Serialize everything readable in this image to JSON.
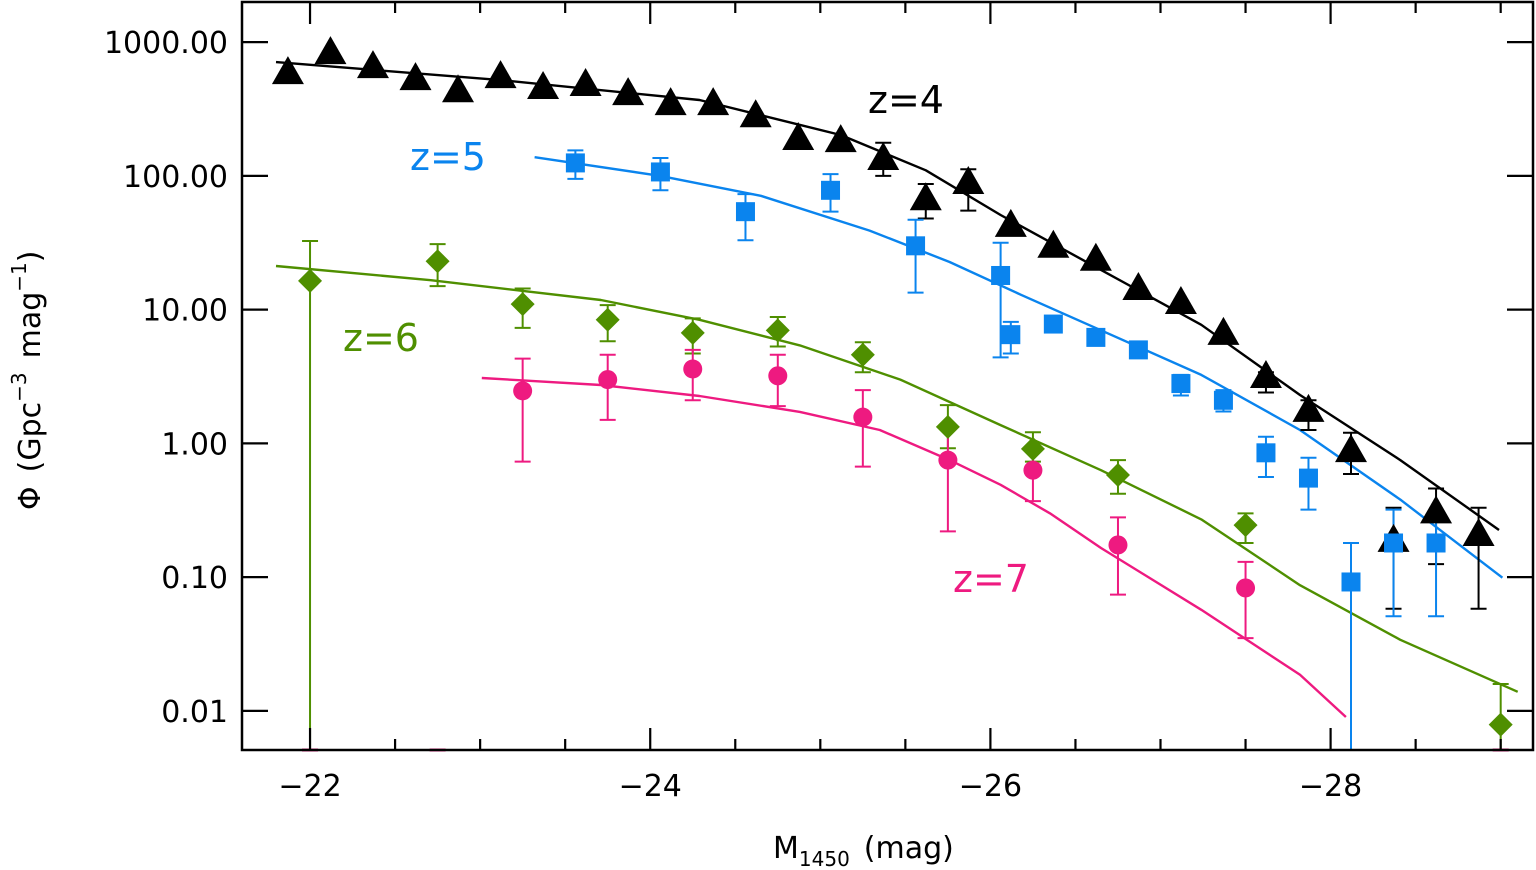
{
  "chart_data": {
    "type": "scatter",
    "title": "",
    "xlabel": {
      "main": "M",
      "sub": "1450",
      "unit": "(mag)"
    },
    "ylabel": {
      "symbol": "Φ",
      "open": "(Gpc",
      "exp1": "−3",
      "mid": "mag",
      "exp2": "−1",
      "close": ")"
    },
    "xlim": [
      -21.6,
      -29.19
    ],
    "ylim": [
      0.0051,
      1995
    ],
    "yscale": "log",
    "xticks": [
      -22,
      -24,
      -26,
      -28
    ],
    "xtick_labels": [
      "−22",
      "−24",
      "−26",
      "−28"
    ],
    "xminor_step": 0.5,
    "yticks": [
      0.01,
      0.1,
      1,
      10,
      100,
      1000
    ],
    "ytick_labels": [
      "0.01",
      "0.10",
      "1.00",
      "10.00",
      "100.00",
      "1000.00"
    ],
    "grid": false,
    "series": [
      {
        "name": "z=4",
        "label": "z=4",
        "color": "#000000",
        "marker": "triangle",
        "points": [
          {
            "x": -21.87,
            "y": 597
          },
          {
            "x": -22.12,
            "y": 842
          },
          {
            "x": -22.37,
            "y": 662
          },
          {
            "x": -22.62,
            "y": 538
          },
          {
            "x": -22.87,
            "y": 437
          },
          {
            "x": -23.12,
            "y": 557
          },
          {
            "x": -23.37,
            "y": 462
          },
          {
            "x": -23.62,
            "y": 486
          },
          {
            "x": -23.87,
            "y": 416
          },
          {
            "x": -24.12,
            "y": 350
          },
          {
            "x": -24.37,
            "y": 350
          },
          {
            "x": -24.62,
            "y": 284
          },
          {
            "x": -24.87,
            "y": 192
          },
          {
            "x": -25.12,
            "y": 185
          },
          {
            "x": -25.37,
            "y": 136,
            "hi": 177,
            "lo": 100
          },
          {
            "x": -25.62,
            "y": 68,
            "hi": 87,
            "lo": 48
          },
          {
            "x": -25.87,
            "y": 90,
            "hi": 112,
            "lo": 55
          },
          {
            "x": -26.12,
            "y": 43
          },
          {
            "x": -26.37,
            "y": 30
          },
          {
            "x": -26.62,
            "y": 24
          },
          {
            "x": -26.87,
            "y": 14.5
          },
          {
            "x": -27.12,
            "y": 11.4
          },
          {
            "x": -27.37,
            "y": 6.7
          },
          {
            "x": -27.62,
            "y": 3.19,
            "hi": 3.4,
            "lo": 2.4
          },
          {
            "x": -27.87,
            "y": 1.78,
            "hi": 2.1,
            "lo": 1.26
          },
          {
            "x": -28.12,
            "y": 0.89,
            "hi": 1.2,
            "lo": 0.59
          },
          {
            "x": -28.37,
            "y": 0.19,
            "hi": 0.33,
            "lo": 0.058
          },
          {
            "x": -28.62,
            "y": 0.31,
            "hi": 0.46,
            "lo": 0.125
          },
          {
            "x": -28.87,
            "y": 0.21,
            "hi": 0.33,
            "lo": 0.058
          }
        ],
        "fit": [
          {
            "x": -21.8,
            "y": 709
          },
          {
            "x": -23.12,
            "y": 520
          },
          {
            "x": -24.29,
            "y": 369
          },
          {
            "x": -25.12,
            "y": 202
          },
          {
            "x": -25.62,
            "y": 110
          },
          {
            "x": -26.06,
            "y": 51
          },
          {
            "x": -26.65,
            "y": 19.8
          },
          {
            "x": -27.24,
            "y": 7.7
          },
          {
            "x": -27.82,
            "y": 2.3
          },
          {
            "x": -28.41,
            "y": 0.75
          },
          {
            "x": -28.99,
            "y": 0.225
          }
        ]
      },
      {
        "name": "z=5",
        "label": "z=5",
        "color": "#0a84ee",
        "marker": "square",
        "points": [
          {
            "x": -23.56,
            "y": 125,
            "hi": 155,
            "lo": 95
          },
          {
            "x": -24.06,
            "y": 107,
            "hi": 136,
            "lo": 78
          },
          {
            "x": -24.56,
            "y": 54,
            "hi": 73,
            "lo": 33
          },
          {
            "x": -25.06,
            "y": 78,
            "hi": 103,
            "lo": 54
          },
          {
            "x": -25.56,
            "y": 30,
            "hi": 47,
            "lo": 13.4
          },
          {
            "x": -26.06,
            "y": 18,
            "hi": 31.6,
            "lo": 4.4
          },
          {
            "x": -26.12,
            "y": 6.5,
            "hi": 8.1,
            "lo": 4.7
          },
          {
            "x": -26.37,
            "y": 7.8
          },
          {
            "x": -26.62,
            "y": 6.2
          },
          {
            "x": -26.87,
            "y": 5.0
          },
          {
            "x": -27.12,
            "y": 2.8,
            "hi": 3.25,
            "lo": 2.28
          },
          {
            "x": -27.37,
            "y": 2.1,
            "hi": 2.5,
            "lo": 1.73
          },
          {
            "x": -27.62,
            "y": 0.85,
            "hi": 1.12,
            "lo": 0.56
          },
          {
            "x": -27.87,
            "y": 0.55,
            "hi": 0.78,
            "lo": 0.32
          },
          {
            "x": -28.12,
            "y": 0.092,
            "hi": 0.18,
            "lo": 0.0051
          },
          {
            "x": -28.37,
            "y": 0.18,
            "hi": 0.32,
            "lo": 0.051
          },
          {
            "x": -28.62,
            "y": 0.18,
            "hi": 0.31,
            "lo": 0.051
          }
        ],
        "fit": [
          {
            "x": -23.32,
            "y": 138
          },
          {
            "x": -24.06,
            "y": 100
          },
          {
            "x": -24.65,
            "y": 71
          },
          {
            "x": -25.29,
            "y": 39
          },
          {
            "x": -25.76,
            "y": 22.7
          },
          {
            "x": -26.18,
            "y": 12.9
          },
          {
            "x": -26.65,
            "y": 7.0
          },
          {
            "x": -27.24,
            "y": 3.25
          },
          {
            "x": -27.82,
            "y": 1.26
          },
          {
            "x": -28.41,
            "y": 0.38
          },
          {
            "x": -29.01,
            "y": 0.099
          }
        ]
      },
      {
        "name": "z=6",
        "label": "z=6",
        "color": "#4f8f00",
        "marker": "diamond",
        "points": [
          {
            "x": -22.0,
            "y": 16.4,
            "hi": 32.6,
            "lo": 0.0051
          },
          {
            "x": -22.75,
            "y": 23,
            "hi": 30.9,
            "lo": 15
          },
          {
            "x": -23.25,
            "y": 11,
            "hi": 14.4,
            "lo": 7.3
          },
          {
            "x": -23.75,
            "y": 8.4,
            "hi": 10.8,
            "lo": 5.8
          },
          {
            "x": -24.25,
            "y": 6.7,
            "hi": 8.6,
            "lo": 4.7
          },
          {
            "x": -24.75,
            "y": 7.0,
            "hi": 8.8,
            "lo": 5.3
          },
          {
            "x": -25.25,
            "y": 4.6,
            "hi": 5.7,
            "lo": 3.4
          },
          {
            "x": -25.75,
            "y": 1.33,
            "hi": 1.93,
            "lo": 0.92
          },
          {
            "x": -26.25,
            "y": 0.91,
            "hi": 1.21,
            "lo": 0.73
          },
          {
            "x": -26.75,
            "y": 0.58,
            "hi": 0.75,
            "lo": 0.42
          },
          {
            "x": -27.5,
            "y": 0.245,
            "hi": 0.3,
            "lo": 0.18
          },
          {
            "x": -29.0,
            "y": 0.0079,
            "hi": 0.0159,
            "lo": 0.0051
          }
        ],
        "fit": [
          {
            "x": -21.8,
            "y": 21.2
          },
          {
            "x": -22.71,
            "y": 16.6
          },
          {
            "x": -23.71,
            "y": 11.8
          },
          {
            "x": -24.29,
            "y": 8.4
          },
          {
            "x": -24.88,
            "y": 5.4
          },
          {
            "x": -25.47,
            "y": 3.0
          },
          {
            "x": -26.06,
            "y": 1.37
          },
          {
            "x": -26.65,
            "y": 0.63
          },
          {
            "x": -27.24,
            "y": 0.27
          },
          {
            "x": -27.82,
            "y": 0.087
          },
          {
            "x": -28.41,
            "y": 0.034
          },
          {
            "x": -29.1,
            "y": 0.0139
          }
        ]
      },
      {
        "name": "z=7",
        "label": "z=7",
        "color": "#ee1a80",
        "marker": "circle",
        "points": [
          {
            "x": -23.25,
            "y": 2.47,
            "hi": 4.3,
            "lo": 0.73
          },
          {
            "x": -23.75,
            "y": 3.0,
            "hi": 4.6,
            "lo": 1.5
          },
          {
            "x": -24.25,
            "y": 3.6,
            "hi": 5.0,
            "lo": 2.1
          },
          {
            "x": -24.75,
            "y": 3.2,
            "hi": 4.6,
            "lo": 1.9
          },
          {
            "x": -25.25,
            "y": 1.57,
            "hi": 2.5,
            "lo": 0.67
          },
          {
            "x": -25.75,
            "y": 0.75,
            "hi": 1.3,
            "lo": 0.22
          },
          {
            "x": -26.25,
            "y": 0.63,
            "hi": 0.87,
            "lo": 0.37
          },
          {
            "x": -26.75,
            "y": 0.174,
            "hi": 0.28,
            "lo": 0.074
          },
          {
            "x": -27.5,
            "y": 0.083,
            "hi": 0.13,
            "lo": 0.035
          }
        ],
        "lower_limit_marks": [
          -22.0,
          -22.75,
          -29.0
        ],
        "fit": [
          {
            "x": -23.01,
            "y": 3.08
          },
          {
            "x": -23.71,
            "y": 2.73
          },
          {
            "x": -24.29,
            "y": 2.26
          },
          {
            "x": -24.88,
            "y": 1.72
          },
          {
            "x": -25.35,
            "y": 1.26
          },
          {
            "x": -25.76,
            "y": 0.75
          },
          {
            "x": -26.06,
            "y": 0.49
          },
          {
            "x": -26.35,
            "y": 0.3
          },
          {
            "x": -26.65,
            "y": 0.165
          },
          {
            "x": -27.24,
            "y": 0.057
          },
          {
            "x": -27.82,
            "y": 0.0186
          },
          {
            "x": -28.09,
            "y": 0.009
          }
        ]
      }
    ]
  }
}
